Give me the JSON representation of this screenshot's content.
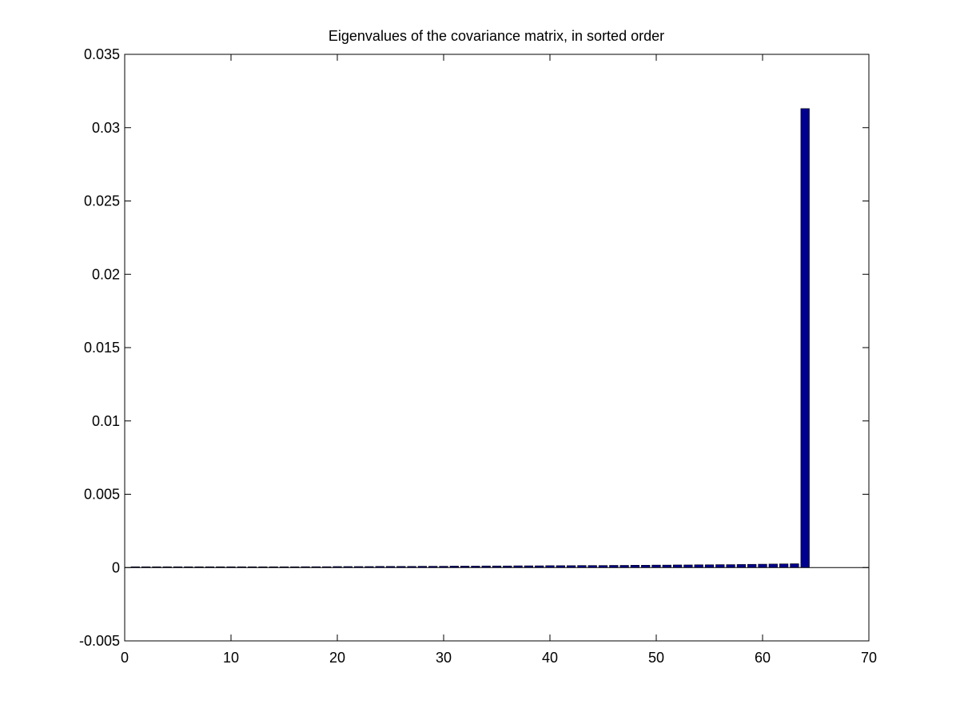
{
  "chart_data": {
    "type": "bar",
    "title": "Eigenvalues of the covariance matrix, in sorted order",
    "xlabel": "",
    "ylabel": "",
    "xlim": [
      0,
      70
    ],
    "ylim": [
      -0.005,
      0.035
    ],
    "xticks": [
      0,
      10,
      20,
      30,
      40,
      50,
      60,
      70
    ],
    "xtick_labels": [
      "0",
      "10",
      "20",
      "30",
      "40",
      "50",
      "60",
      "70"
    ],
    "yticks": [
      -0.005,
      0,
      0.005,
      0.01,
      0.015,
      0.02,
      0.025,
      0.03,
      0.035
    ],
    "ytick_labels": [
      "-0.005",
      "0",
      "0.005",
      "0.01",
      "0.015",
      "0.02",
      "0.025",
      "0.03",
      "0.035"
    ],
    "grid": false,
    "bar_color": "#00008f",
    "x": [
      1,
      2,
      3,
      4,
      5,
      6,
      7,
      8,
      9,
      10,
      11,
      12,
      13,
      14,
      15,
      16,
      17,
      18,
      19,
      20,
      21,
      22,
      23,
      24,
      25,
      26,
      27,
      28,
      29,
      30,
      31,
      32,
      33,
      34,
      35,
      36,
      37,
      38,
      39,
      40,
      41,
      42,
      43,
      44,
      45,
      46,
      47,
      48,
      49,
      50,
      51,
      52,
      53,
      54,
      55,
      56,
      57,
      58,
      59,
      60,
      61,
      62,
      63,
      64
    ],
    "values": [
      0,
      0,
      0,
      0,
      1e-05,
      2e-05,
      2e-05,
      3e-05,
      3e-05,
      3e-05,
      4e-05,
      4e-05,
      4e-05,
      5e-05,
      5e-05,
      5e-05,
      6e-05,
      6e-05,
      6e-05,
      7e-05,
      7e-05,
      7e-05,
      7e-05,
      8e-05,
      8e-05,
      8e-05,
      8e-05,
      9e-05,
      9e-05,
      9e-05,
      0.0001,
      0.0001,
      0.0001,
      0.00011,
      0.00011,
      0.00011,
      0.00012,
      0.00012,
      0.00012,
      0.00013,
      0.00013,
      0.00013,
      0.00014,
      0.00014,
      0.00014,
      0.00015,
      0.00015,
      0.00016,
      0.00016,
      0.00017,
      0.00017,
      0.00018,
      0.00018,
      0.00019,
      0.00019,
      0.0002,
      0.0002,
      0.00021,
      0.00022,
      0.00023,
      0.00024,
      0.00025,
      0.00026,
      0.0313
    ]
  }
}
